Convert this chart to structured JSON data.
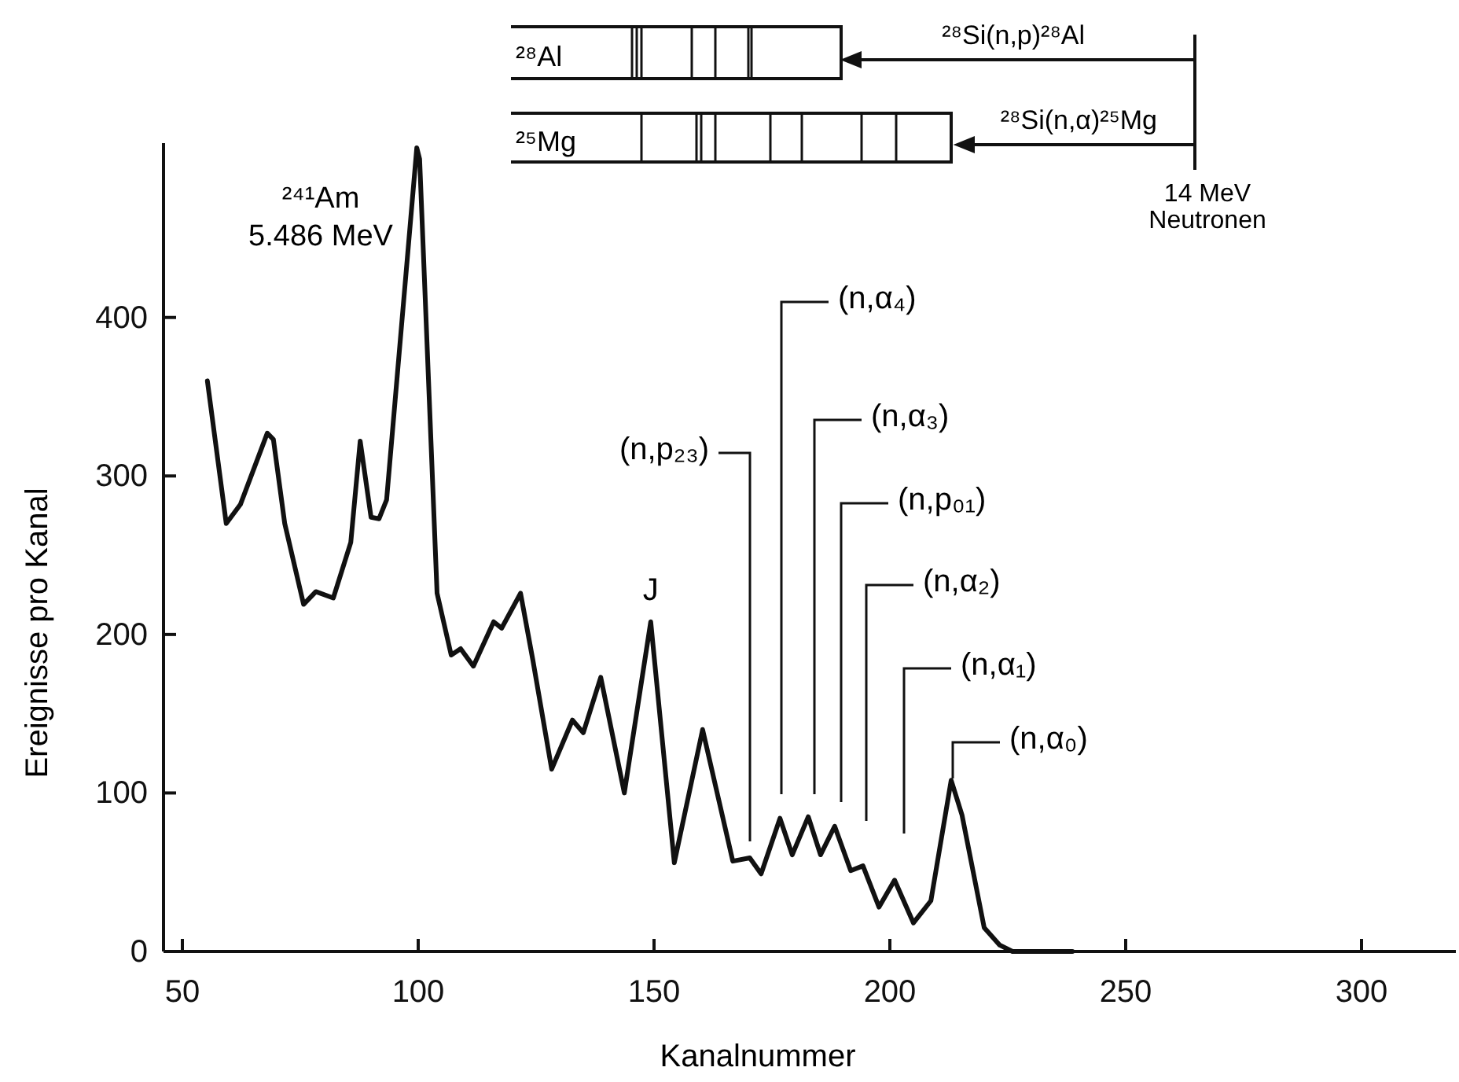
{
  "chart_data": {
    "type": "line",
    "xlabel": "Kanalnummer",
    "ylabel": "Ereignisse pro Kanal",
    "xlim": [
      46,
      320
    ],
    "ylim": [
      0,
      510
    ],
    "xticks": [
      50,
      100,
      150,
      200,
      250,
      300
    ],
    "yticks": [
      0,
      100,
      200,
      300,
      400
    ],
    "x": [
      55.3,
      59.3,
      62.3,
      68,
      69.3,
      71.7,
      75.7,
      78.3,
      82,
      85.7,
      87.7,
      90,
      91.7,
      93.3,
      99.7,
      100.3,
      104,
      107,
      109,
      111.7,
      116,
      117.7,
      121.7,
      124.3,
      128.3,
      132.7,
      135,
      138.7,
      143.7,
      149.3,
      154.3,
      160.3,
      166.7,
      170.3,
      172.7,
      176.7,
      179.3,
      182.7,
      185.3,
      188.3,
      191.7,
      194.3,
      197.7,
      201,
      205,
      208.7,
      213,
      215.3,
      220,
      223.3,
      226,
      238.7
    ],
    "series": [
      {
        "color": "#111111",
        "values": [
          360,
          270,
          282,
          327,
          323,
          270,
          219,
          227,
          223,
          258,
          322,
          274,
          273,
          285,
          507,
          500,
          226,
          187,
          191,
          180,
          208,
          204,
          226,
          184,
          115,
          146,
          138,
          173,
          100,
          208,
          56,
          140,
          57,
          59,
          49,
          84,
          61,
          85,
          61,
          79,
          51,
          54,
          28,
          45,
          18,
          32,
          108,
          86,
          15,
          4,
          0,
          0
        ]
      }
    ],
    "annotations": [
      {
        "text": "²⁴¹Am\n5.486 MeV",
        "x": 100,
        "y": 507
      },
      {
        "text": "J",
        "x": 149.3,
        "y": 208
      },
      "(n,p₂₃)",
      "(n,α₄)",
      "(n,α₃)",
      "(n,p₀₁)",
      "(n,α₂)",
      "(n,α₁)",
      "(n,α₀)",
      "²⁸Al",
      "²⁵Mg",
      "²⁸Si(n,p)²⁸Al",
      "²⁸Si(n,α)²⁵Mg",
      "14 MeV\nNeutronen"
    ]
  }
}
